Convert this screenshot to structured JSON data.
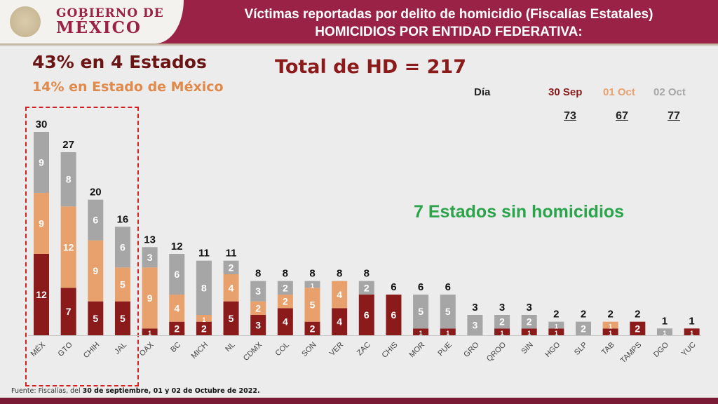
{
  "header": {
    "logo_line1": "GOBIERNO DE",
    "logo_line2": "MÉXICO",
    "title1": "Víctimas reportadas por delito de homicidio (Fiscalías Estatales)",
    "title2": "HOMICIDIOS POR ENTIDAD FEDERATIVA:"
  },
  "highlights": {
    "top_states": "43% en 4 Estados",
    "edomex": "14% en Estado de México",
    "total": "Total de HD = 217",
    "no_homicides": "7 Estados sin homicidios"
  },
  "day_table": {
    "label": "Día",
    "days": [
      {
        "label": "30 Sep",
        "value": "73"
      },
      {
        "label": "01 Oct",
        "value": "67"
      },
      {
        "label": "02 Oct",
        "value": "77"
      }
    ]
  },
  "source": {
    "prefix": "Fuente: Fiscalías, del ",
    "bold": "30 de septiembre, 01 y 02 de Octubre de 2022."
  },
  "colors": {
    "sep30": "#8b1a1a",
    "oct01": "#e8a06c",
    "oct02": "#a6a6a6"
  },
  "chart_data": {
    "type": "bar",
    "stacked": true,
    "title": "HOMICIDIOS POR ENTIDAD FEDERATIVA",
    "categories": [
      "MÉX",
      "GTO",
      "CHIH",
      "JAL",
      "OAX",
      "BC",
      "MICH",
      "NL",
      "CDMX",
      "COL",
      "SON",
      "VER",
      "ZAC",
      "CHIS",
      "MOR",
      "PUE",
      "GRO",
      "QROO",
      "SIN",
      "HGO",
      "SLP",
      "TAB",
      "TAMPS",
      "DGO",
      "YUC"
    ],
    "series": [
      {
        "name": "30 Sep",
        "values": [
          12,
          7,
          5,
          5,
          1,
          2,
          2,
          5,
          3,
          4,
          2,
          4,
          6,
          6,
          1,
          1,
          0,
          1,
          1,
          1,
          0,
          1,
          2,
          0,
          1
        ]
      },
      {
        "name": "01 Oct",
        "values": [
          9,
          12,
          9,
          5,
          9,
          4,
          1,
          4,
          2,
          2,
          5,
          4,
          0,
          0,
          0,
          0,
          0,
          0,
          0,
          0,
          0,
          1,
          0,
          0,
          0
        ]
      },
      {
        "name": "02 Oct",
        "values": [
          9,
          8,
          6,
          6,
          3,
          6,
          8,
          2,
          3,
          2,
          1,
          0,
          2,
          0,
          5,
          5,
          3,
          2,
          2,
          1,
          2,
          0,
          0,
          1,
          0
        ]
      }
    ],
    "totals": [
      30,
      27,
      20,
      16,
      13,
      12,
      11,
      11,
      8,
      8,
      8,
      8,
      8,
      6,
      6,
      6,
      3,
      3,
      3,
      2,
      2,
      2,
      2,
      1,
      1
    ],
    "ylim": [
      0,
      30
    ],
    "grid": false
  }
}
